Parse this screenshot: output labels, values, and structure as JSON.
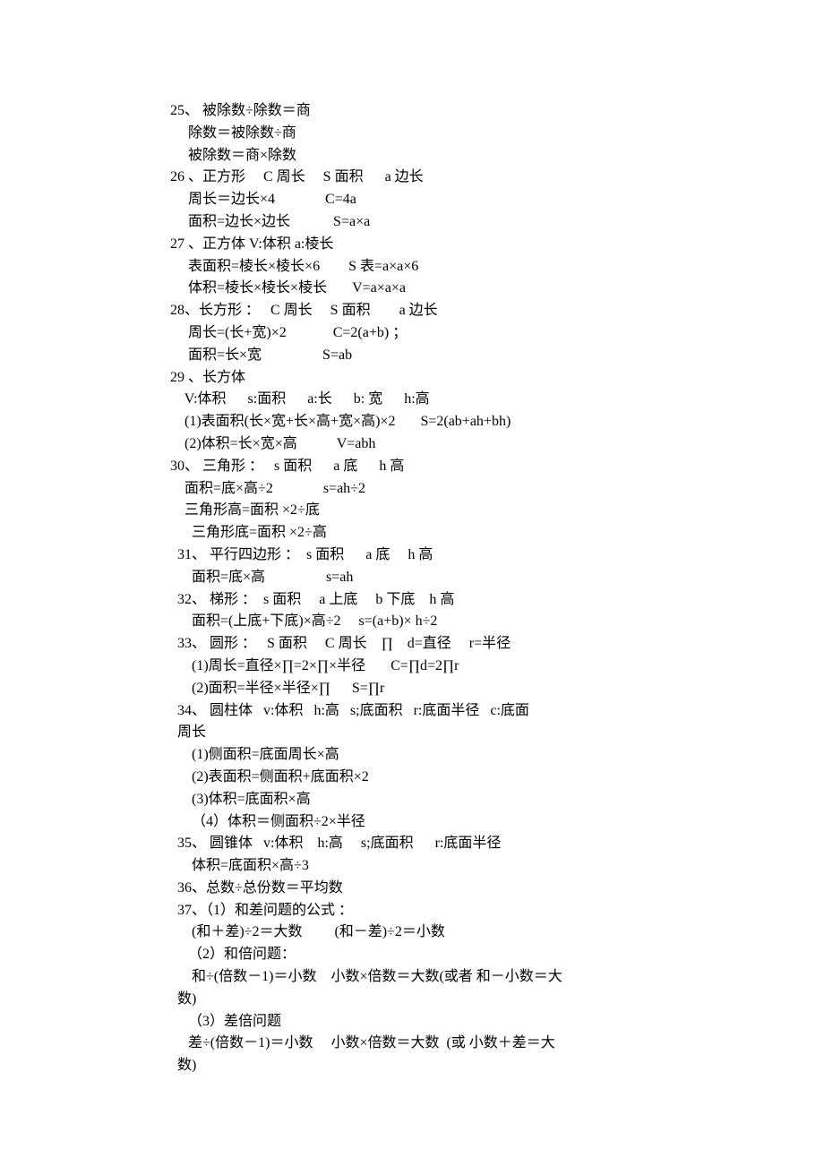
{
  "font": {
    "family": "SimSun",
    "size_pt": 12,
    "color": "#000000"
  },
  "background_color": "#ffffff",
  "lines": [
    "25、 被除数÷除数＝商",
    "     除数＝被除数÷商",
    "     被除数＝商×除数",
    "26 、正方形     C 周长     S 面积      a 边长",
    "     周长＝边长×4              C=4a",
    "     面积=边长×边长            S=a×a",
    "27 、正方体 V:体积 a:棱长",
    "     表面积=棱长×棱长×6        S 表=a×a×6",
    "     体积=棱长×棱长×棱长       V=a×a×a",
    "28、长方形 ：   C 周长     S 面积        a 边长",
    "     周长=(长+宽)×2             C=2(a+b) ；",
    "     面积=长×宽                 S=ab",
    "29 、长方体",
    "    V:体积      s:面积      a:长      b: 宽      h:高",
    "    (1)表面积(长×宽+长×高+宽×高)×2       S=2(ab+ah+bh)",
    "    (2)体积=长×宽×高           V=abh",
    "30、 三角形 ：   s 面积      a 底      h 高",
    "    面积=底×高÷2              s=ah÷2",
    "    三角形高=面积 ×2÷底",
    "      三角形底=面积 ×2÷高",
    "  31、 平行四边形 ：  s 面积      a 底     h 高",
    "      面积=底×高                 s=ah",
    "  32、 梯形 ：  s 面积     a 上底     b 下底    h 高",
    "      面积=(上底+下底)×高÷2     s=(a+b)× h÷2",
    "  33、 圆形 ：   S 面积     C 周长    ∏    d=直径     r=半径",
    "      (1)周长=直径×∏=2×∏×半径       C=∏d=2∏r",
    "      (2)面积=半径×半径×∏      S=∏r",
    "  34、 圆柱体   v:体积   h:高   s;底面积   r:底面半径   c:底面",
    "  周长",
    "      (1)侧面积=底面周长×高",
    "      (2)表面积=侧面积+底面积×2",
    "      (3)体积=底面积×高",
    "      （4）体积＝侧面积÷2×半径",
    "  35、 圆锥体   v:体积    h:高     s;底面积      r:底面半径",
    "      体积=底面积×高÷3",
    "  36、总数÷总份数＝平均数",
    "  37、（1）和差问题的公式 ：",
    "      (和＋差)÷2＝大数         (和－差)÷2＝小数",
    "     （2）和倍问题：",
    "      和÷(倍数－1)＝小数    小数×倍数＝大数(或者 和－小数＝大",
    "  数)",
    "     （3）差倍问题",
    "     差÷(倍数－1)＝小数     小数×倍数＝大数  (或 小数＋差＝大",
    "  数)"
  ]
}
